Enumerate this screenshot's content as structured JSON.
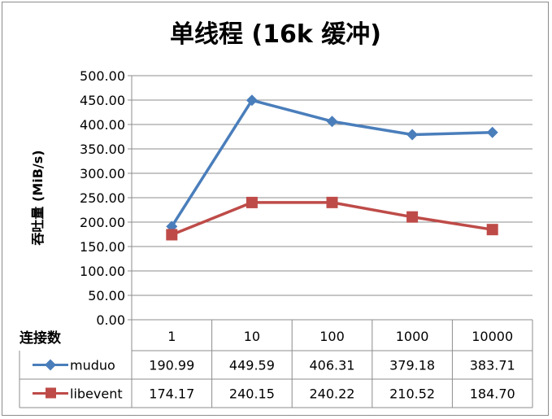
{
  "chart_data": {
    "type": "line",
    "title": "单线程 (16k 缓冲)",
    "ylabel": "吞吐量 (MiB/s)",
    "xlabel": "连接数",
    "categories": [
      "1",
      "10",
      "100",
      "1000",
      "10000"
    ],
    "ylim": [
      0,
      500
    ],
    "ytick_step": 50,
    "ytick_labels": [
      "0.00",
      "50.00",
      "100.00",
      "150.00",
      "200.00",
      "250.00",
      "300.00",
      "350.00",
      "400.00",
      "450.00",
      "500.00"
    ],
    "grid": true,
    "legend": "data-table",
    "series": [
      {
        "name": "muduo",
        "color": "#4a7ebb",
        "marker": "diamond",
        "values": [
          190.99,
          449.59,
          406.31,
          379.18,
          383.71
        ],
        "labels": [
          "190.99",
          "449.59",
          "406.31",
          "379.18",
          "383.71"
        ]
      },
      {
        "name": "libevent",
        "color": "#be4b48",
        "marker": "square",
        "values": [
          174.17,
          240.15,
          240.22,
          210.52,
          184.7
        ],
        "labels": [
          "174.17",
          "240.15",
          "240.22",
          "210.52",
          "184.70"
        ]
      }
    ]
  }
}
